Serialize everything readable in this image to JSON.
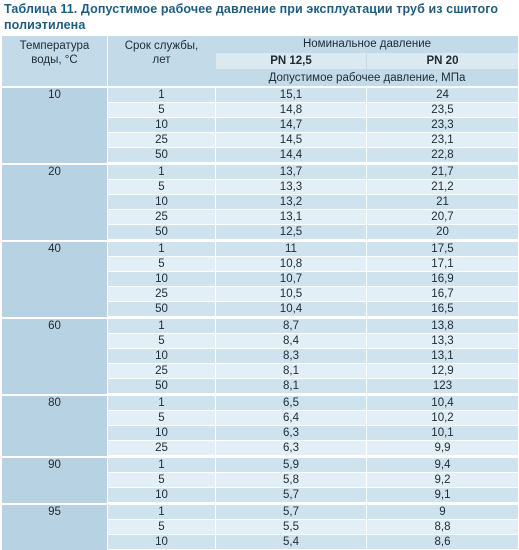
{
  "caption": "Таблица 11. Допустимое рабочее давление при эксплуатации труб из сшитого полиэтилена",
  "header": {
    "temp_line1": "Температура",
    "temp_line2": "воды, °С",
    "life_line1": "Срок службы,",
    "life_line2": "лет",
    "nominal": "Номинальное давление",
    "pn1": "PN 12,5",
    "pn2": "PN 20",
    "unit": "Допустимое рабочее давление, МПа"
  },
  "groups": [
    {
      "temp": "10",
      "rows": [
        {
          "life": "1",
          "pn1": "15,1",
          "pn2": "24"
        },
        {
          "life": "5",
          "pn1": "14,8",
          "pn2": "23,5"
        },
        {
          "life": "10",
          "pn1": "14,7",
          "pn2": "23,3"
        },
        {
          "life": "25",
          "pn1": "14,5",
          "pn2": "23,1"
        },
        {
          "life": "50",
          "pn1": "14,4",
          "pn2": "22,8"
        }
      ]
    },
    {
      "temp": "20",
      "rows": [
        {
          "life": "1",
          "pn1": "13,7",
          "pn2": "21,7"
        },
        {
          "life": "5",
          "pn1": "13,3",
          "pn2": "21,2"
        },
        {
          "life": "10",
          "pn1": "13,2",
          "pn2": "21"
        },
        {
          "life": "25",
          "pn1": "13,1",
          "pn2": "20,7"
        },
        {
          "life": "50",
          "pn1": "12,5",
          "pn2": "20"
        }
      ]
    },
    {
      "temp": "40",
      "rows": [
        {
          "life": "1",
          "pn1": "11",
          "pn2": "17,5"
        },
        {
          "life": "5",
          "pn1": "10,8",
          "pn2": "17,1"
        },
        {
          "life": "10",
          "pn1": "10,7",
          "pn2": "16,9"
        },
        {
          "life": "25",
          "pn1": "10,5",
          "pn2": "16,7"
        },
        {
          "life": "50",
          "pn1": "10,4",
          "pn2": "16,5"
        }
      ]
    },
    {
      "temp": "60",
      "rows": [
        {
          "life": "1",
          "pn1": "8,7",
          "pn2": "13,8"
        },
        {
          "life": "5",
          "pn1": "8,4",
          "pn2": "13,3"
        },
        {
          "life": "10",
          "pn1": "8,3",
          "pn2": "13,1"
        },
        {
          "life": "25",
          "pn1": "8,1",
          "pn2": "12,9"
        },
        {
          "life": "50",
          "pn1": "8,1",
          "pn2": "123"
        }
      ]
    },
    {
      "temp": "80",
      "rows": [
        {
          "life": "1",
          "pn1": "6,5",
          "pn2": "10,4"
        },
        {
          "life": "5",
          "pn1": "6,4",
          "pn2": "10,2"
        },
        {
          "life": "10",
          "pn1": "6,3",
          "pn2": "10,1"
        },
        {
          "life": "25",
          "pn1": "6,3",
          "pn2": "9,9"
        }
      ]
    },
    {
      "temp": "90",
      "rows": [
        {
          "life": "1",
          "pn1": "5,9",
          "pn2": "9,4"
        },
        {
          "life": "5",
          "pn1": "5,8",
          "pn2": "9,2"
        },
        {
          "life": "10",
          "pn1": "5,7",
          "pn2": "9,1"
        }
      ]
    },
    {
      "temp": "95",
      "rows": [
        {
          "life": "1",
          "pn1": "5,7",
          "pn2": "9"
        },
        {
          "life": "5",
          "pn1": "5,5",
          "pn2": "8,8"
        },
        {
          "life": "10",
          "pn1": "5,4",
          "pn2": "8,6"
        }
      ]
    }
  ]
}
